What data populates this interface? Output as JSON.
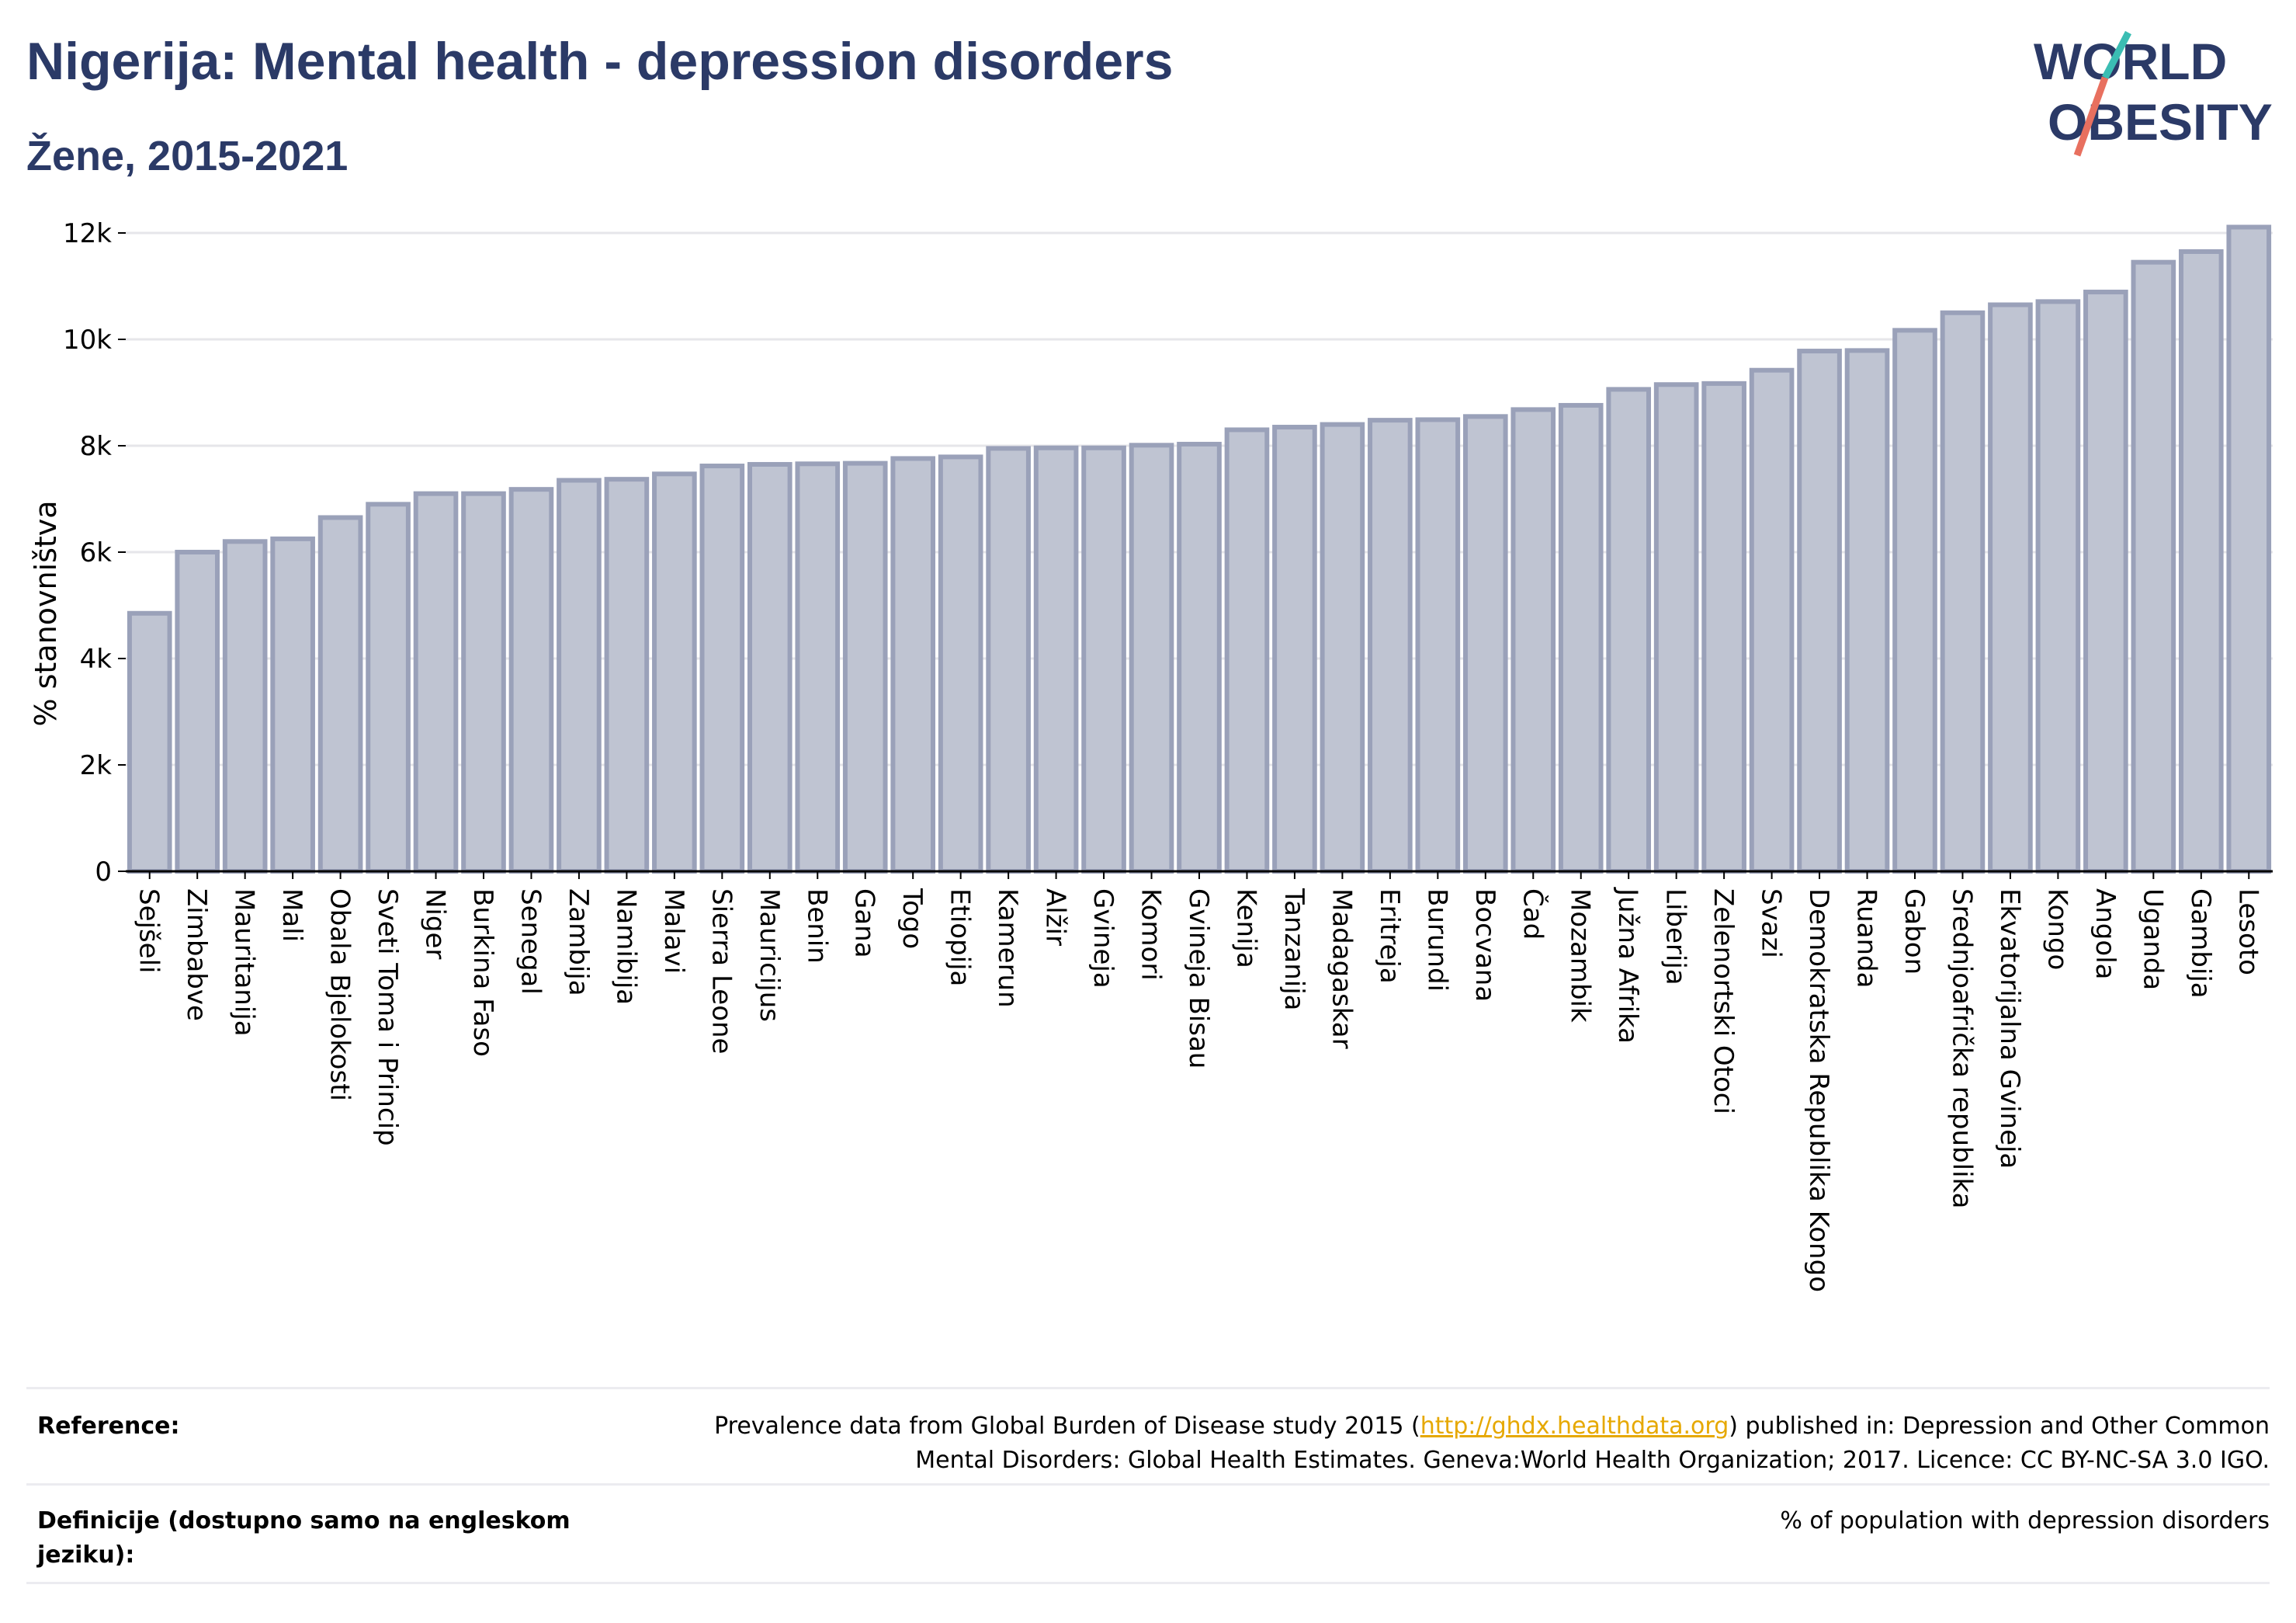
{
  "header": {
    "title": "Nigerija: Mental health - depression disorders",
    "subtitle": "Žene, 2015-2021"
  },
  "logo": {
    "line1": "WORLD",
    "line2": "OBESITY",
    "colors": {
      "text": "#2b3a67",
      "slash_teal": "#3bbdb3",
      "slash_coral": "#e8705f"
    }
  },
  "chart_data": {
    "type": "bar",
    "ylabel": "% stanovništva",
    "ylim": [
      0,
      12000
    ],
    "yticks": [
      0,
      2000,
      4000,
      6000,
      8000,
      10000,
      12000
    ],
    "ytick_labels": [
      "0",
      "2k",
      "4k",
      "6k",
      "8k",
      "10k",
      "12k"
    ],
    "grid": true,
    "bar_color": "#bfc4d2",
    "bar_edge_color": "#9aa1b9",
    "categories": [
      "Sejšeli",
      "Zimbabve",
      "Mauritanija",
      "Mali",
      "Obala Bjelokosti",
      "Sveti Toma i Princip",
      "Niger",
      "Burkina Faso",
      "Senegal",
      "Zambija",
      "Namibija",
      "Malavi",
      "Sierra Leone",
      "Mauricijus",
      "Benin",
      "Gana",
      "Togo",
      "Etiopija",
      "Kamerun",
      "Alžir",
      "Gvineja",
      "Komori",
      "Gvineja Bisau",
      "Kenija",
      "Tanzanija",
      "Madagaskar",
      "Eritreja",
      "Burundi",
      "Bocvana",
      "Čad",
      "Mozambik",
      "Južna Afrika",
      "Liberija",
      "Zelenortski Otoci",
      "Svazi",
      "Demokratska Republika Kongo",
      "Ruanda",
      "Gabon",
      "Srednjoafrička republika",
      "Ekvatorijalna Gvineja",
      "Kongo",
      "Angola",
      "Uganda",
      "Gambija",
      "Lesoto"
    ],
    "values": [
      4850,
      6000,
      6200,
      6250,
      6650,
      6900,
      7100,
      7100,
      7180,
      7350,
      7370,
      7470,
      7620,
      7650,
      7660,
      7670,
      7760,
      7790,
      7950,
      7960,
      7960,
      8010,
      8030,
      8300,
      8350,
      8400,
      8480,
      8490,
      8550,
      8680,
      8760,
      9060,
      9150,
      9170,
      9420,
      9780,
      9790,
      10170,
      10500,
      10650,
      10710,
      10890,
      11450,
      11650,
      12110
    ]
  },
  "footer": {
    "reference_label": "Reference:",
    "reference_text_before": "Prevalence data from Global Burden of Disease study 2015 (",
    "reference_link": "http://ghdx.healthdata.org",
    "reference_text_after": ") published in: Depression and Other Common",
    "reference_line2": "Mental Disorders: Global Health Estimates. Geneva:World Health Organization; 2017. Licence: CC BY-NC-SA 3.0 IGO.",
    "definition_label": "Definicije (dostupno samo na engleskom jeziku):",
    "definition_text": "% of population with depression disorders"
  }
}
